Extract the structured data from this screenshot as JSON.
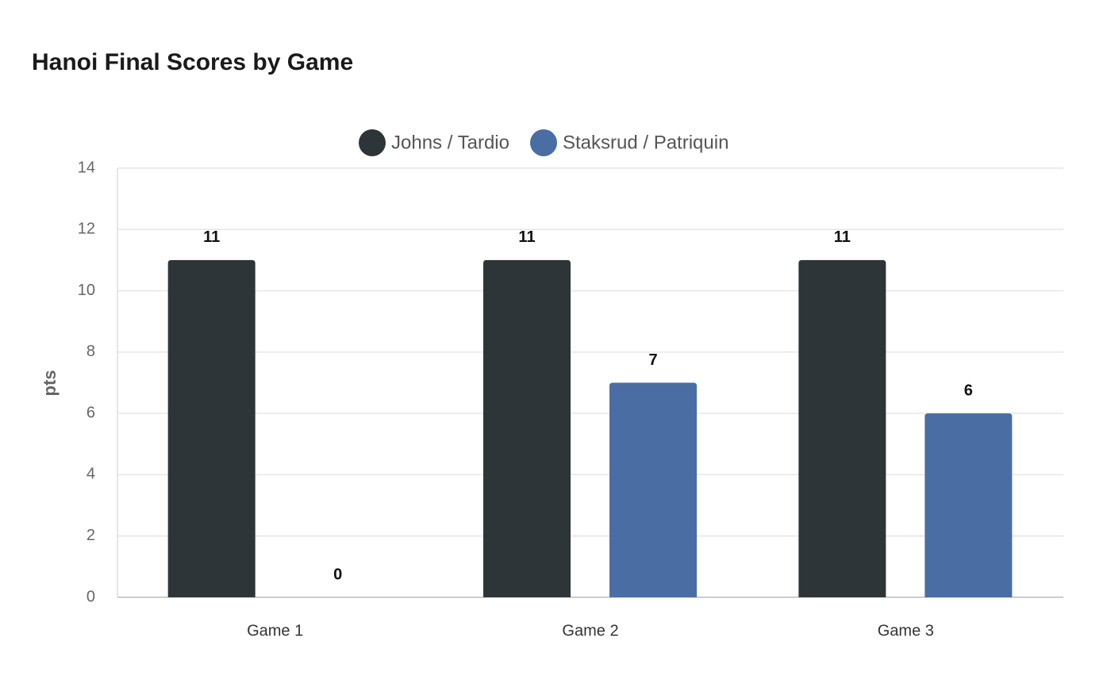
{
  "chart_data": {
    "type": "bar",
    "title": "Hanoi Final Scores by Game",
    "y_label": "pts",
    "categories": [
      "Game 1",
      "Game 2",
      "Game 3"
    ],
    "series": [
      {
        "name": "Johns / Tardio",
        "color": "#2e3538",
        "values": [
          11,
          11,
          11
        ]
      },
      {
        "name": "Staksrud / Patriquin",
        "color": "#4a6da4",
        "values": [
          0,
          7,
          6
        ]
      }
    ],
    "ylim": [
      0,
      14
    ],
    "yticks": [
      0,
      2,
      4,
      6,
      8,
      10,
      12,
      14
    ],
    "grid": true,
    "legend": "top"
  }
}
